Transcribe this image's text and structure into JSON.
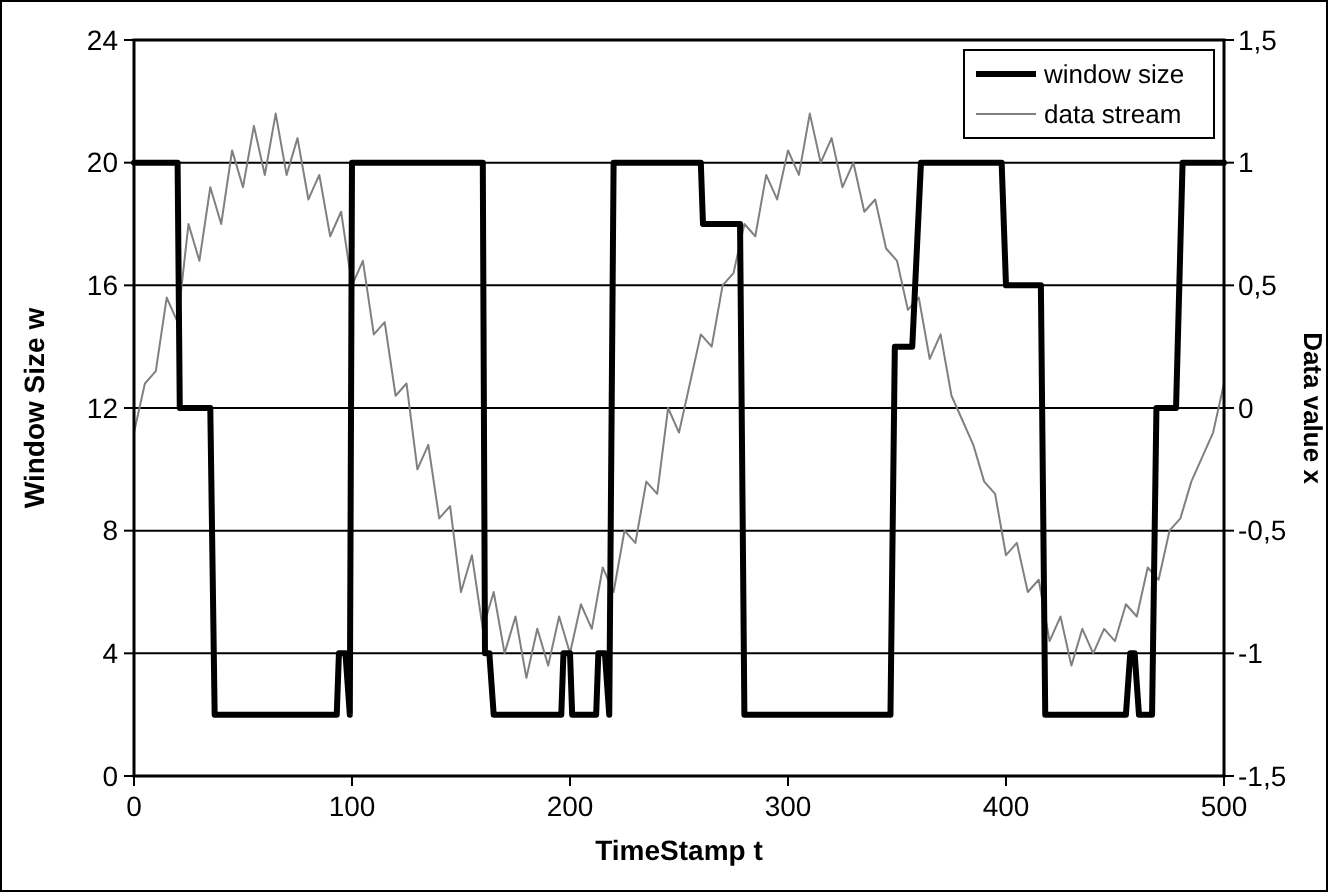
{
  "chart_data": {
    "type": "line",
    "xlabel": "TimeStamp t",
    "ylabel": "Window Size w",
    "y2label": "Data value x",
    "xlim": [
      0,
      500
    ],
    "xticks": [
      0,
      100,
      200,
      300,
      400,
      500
    ],
    "ylim": [
      0,
      24
    ],
    "yticks": [
      0,
      4,
      8,
      12,
      16,
      20,
      24
    ],
    "y2lim": [
      -1.5,
      1.5
    ],
    "y2ticks": [
      {
        "value": -1.5,
        "label": "-1,5"
      },
      {
        "value": -1,
        "label": "-1"
      },
      {
        "value": -0.5,
        "label": "-0,5"
      },
      {
        "value": 0,
        "label": "0"
      },
      {
        "value": 0.5,
        "label": "0,5"
      },
      {
        "value": 1,
        "label": "1"
      },
      {
        "value": 1.5,
        "label": "1,5"
      }
    ],
    "grid": "y",
    "legend": "top right",
    "marker": "none",
    "series": [
      {
        "name": "window size",
        "color": "#000000",
        "x": [
          0,
          20,
          21,
          35,
          37,
          93,
          94,
          97,
          99,
          100,
          160,
          161,
          163,
          165,
          196,
          197,
          200,
          201,
          212,
          213,
          216,
          218,
          220,
          260,
          261,
          278,
          280,
          347,
          349,
          357,
          361,
          398,
          400,
          416,
          418,
          455,
          457,
          459,
          461,
          467,
          469,
          478,
          481,
          500
        ],
        "values": [
          20,
          20,
          12,
          12,
          2,
          2,
          4,
          4,
          2,
          20,
          20,
          4,
          4,
          2,
          2,
          4,
          4,
          2,
          2,
          4,
          4,
          2,
          20,
          20,
          18,
          18,
          2,
          2,
          14,
          14,
          20,
          20,
          16,
          16,
          2,
          2,
          4,
          4,
          2,
          2,
          12,
          12,
          20,
          20
        ]
      },
      {
        "name": "data stream",
        "color": "#808080",
        "axis": "y2",
        "x": [
          0,
          5,
          10,
          15,
          20,
          25,
          30,
          35,
          40,
          45,
          50,
          55,
          60,
          65,
          70,
          75,
          80,
          85,
          90,
          95,
          100,
          105,
          110,
          115,
          120,
          125,
          130,
          135,
          140,
          145,
          150,
          155,
          160,
          165,
          170,
          175,
          180,
          185,
          190,
          195,
          200,
          205,
          210,
          215,
          220,
          225,
          230,
          235,
          240,
          245,
          250,
          255,
          260,
          265,
          270,
          275,
          280,
          285,
          290,
          295,
          300,
          305,
          310,
          315,
          320,
          325,
          330,
          335,
          340,
          345,
          350,
          355,
          360,
          365,
          370,
          375,
          380,
          385,
          390,
          395,
          400,
          405,
          410,
          415,
          420,
          425,
          430,
          435,
          440,
          445,
          450,
          455,
          460,
          465,
          470,
          475,
          480,
          485,
          490,
          495,
          500
        ],
        "values": [
          -0.1,
          0.1,
          0.15,
          0.45,
          0.35,
          0.75,
          0.6,
          0.9,
          0.75,
          1.05,
          0.9,
          1.15,
          0.95,
          1.2,
          0.95,
          1.1,
          0.85,
          0.95,
          0.7,
          0.8,
          0.5,
          0.6,
          0.3,
          0.35,
          0.05,
          0.1,
          -0.25,
          -0.15,
          -0.45,
          -0.4,
          -0.75,
          -0.6,
          -0.9,
          -0.75,
          -1.0,
          -0.85,
          -1.1,
          -0.9,
          -1.05,
          -0.85,
          -1.0,
          -0.8,
          -0.9,
          -0.65,
          -0.75,
          -0.5,
          -0.55,
          -0.3,
          -0.35,
          0.0,
          -0.1,
          0.1,
          0.3,
          0.25,
          0.5,
          0.55,
          0.75,
          0.7,
          0.95,
          0.85,
          1.05,
          0.95,
          1.2,
          1.0,
          1.1,
          0.9,
          1.0,
          0.8,
          0.85,
          0.65,
          0.6,
          0.4,
          0.45,
          0.2,
          0.3,
          0.05,
          -0.05,
          -0.15,
          -0.3,
          -0.35,
          -0.6,
          -0.55,
          -0.75,
          -0.7,
          -0.95,
          -0.85,
          -1.05,
          -0.9,
          -1.0,
          -0.9,
          -0.95,
          -0.8,
          -0.85,
          -0.65,
          -0.7,
          -0.5,
          -0.45,
          -0.3,
          -0.2,
          -0.1,
          0.1
        ]
      }
    ]
  }
}
